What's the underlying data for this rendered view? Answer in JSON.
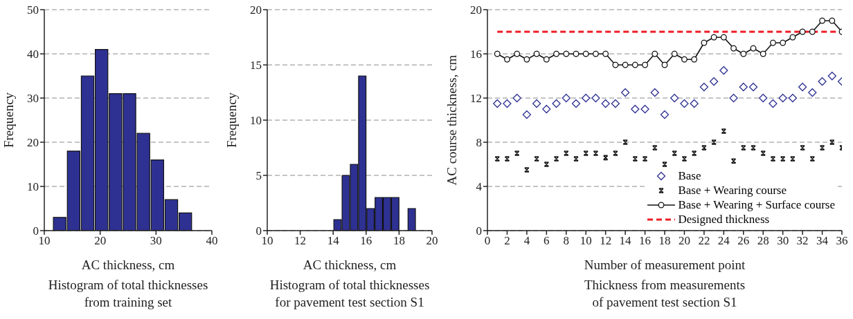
{
  "chart_data": [
    {
      "type": "histogram",
      "title": "Histogram of total thicknesses\nfrom training set",
      "xlabel": "AC thickness, cm",
      "ylabel": "Frequency",
      "bins": [
        11.5,
        14,
        16.5,
        19,
        21.5,
        24,
        26.5,
        29,
        31.5,
        34,
        36.5
      ],
      "values": [
        3,
        18,
        35,
        41,
        31,
        31,
        22,
        16,
        7,
        4
      ],
      "color": "#2e3192",
      "xlim": [
        10,
        40
      ],
      "xticks": [
        10,
        20,
        30,
        40
      ],
      "ylim": [
        0,
        50
      ],
      "yticks": [
        0,
        10,
        20,
        30,
        40,
        50
      ],
      "grid": "y"
    },
    {
      "type": "histogram",
      "title": "Histogram of total thicknesses\nfor pavement test section S1",
      "xlabel": "AC thickness, cm",
      "ylabel": "Frequency",
      "bins": [
        14,
        14.5,
        15,
        15.5,
        16,
        16.5,
        17,
        17.5,
        18,
        18.5,
        19
      ],
      "values": [
        1,
        5,
        6,
        14,
        2,
        3,
        3,
        3,
        0,
        2
      ],
      "color": "#2e3192",
      "xlim": [
        10,
        20
      ],
      "xticks": [
        10,
        12,
        14,
        16,
        18,
        20
      ],
      "ylim": [
        0,
        20
      ],
      "yticks": [
        0,
        5,
        10,
        15,
        20
      ],
      "grid": "y"
    },
    {
      "type": "scatter",
      "title": "Thickness from measurements\nof pavement test section S1",
      "xlabel": "Number of measurement point",
      "ylabel": "AC course thickness, cm",
      "x": [
        1,
        2,
        3,
        4,
        5,
        6,
        7,
        8,
        9,
        10,
        11,
        12,
        13,
        14,
        15,
        16,
        17,
        18,
        19,
        20,
        21,
        22,
        23,
        24,
        25,
        26,
        27,
        28,
        29,
        30,
        31,
        32,
        33,
        34,
        35,
        36
      ],
      "series": [
        {
          "name": "Base",
          "type": "scatter",
          "marker": "diamond",
          "color": "#2e3192",
          "values": [
            11.5,
            11.5,
            12,
            10.5,
            11.5,
            11,
            11.5,
            12,
            11.5,
            12,
            12,
            11.5,
            11.5,
            12.5,
            11,
            11,
            12.5,
            10.5,
            12,
            11.5,
            11.5,
            13,
            13.5,
            14.5,
            12,
            13,
            13,
            12,
            11.5,
            12,
            12,
            13,
            12.5,
            13.5,
            14,
            13.5
          ]
        },
        {
          "name": "Base + Wearing course",
          "type": "scatter",
          "marker": "cross",
          "color": "#111111",
          "values": [
            6.5,
            6.5,
            7,
            5.5,
            6.5,
            6,
            6.5,
            7,
            6.5,
            7,
            7,
            6.6,
            7,
            8,
            6.5,
            6.5,
            7.5,
            6,
            7,
            6.5,
            7,
            7.5,
            8,
            9,
            6.3,
            7.5,
            7.5,
            7,
            6.5,
            6.5,
            6.5,
            7.5,
            6.5,
            7.5,
            8,
            7.5
          ]
        },
        {
          "name": "Base + Wearing + Surface course",
          "type": "line",
          "marker": "circle",
          "line_style": "solid",
          "color": "#111111",
          "values": [
            16,
            15.5,
            16,
            15.5,
            16,
            15.5,
            16,
            16,
            16,
            16,
            16,
            16,
            15,
            15,
            15,
            15,
            16,
            15,
            16,
            15.5,
            15.5,
            17,
            17.5,
            17.5,
            16.5,
            16,
            16.5,
            16,
            17,
            17,
            17.5,
            18,
            18,
            19,
            19,
            18
          ]
        },
        {
          "name": "Designed thickness",
          "type": "line",
          "marker": "none",
          "line_style": "dashed",
          "color": "#ee1c25",
          "x": [
            1,
            36
          ],
          "values": [
            18,
            18
          ]
        }
      ],
      "xlim": [
        0,
        36
      ],
      "xticks": [
        0,
        2,
        4,
        6,
        8,
        10,
        12,
        14,
        16,
        18,
        20,
        22,
        24,
        26,
        28,
        30,
        32,
        34,
        36
      ],
      "ylim": [
        0,
        20
      ],
      "yticks": [
        0,
        4,
        8,
        12,
        16,
        20
      ],
      "grid": "y",
      "legend": "bottom right"
    }
  ]
}
